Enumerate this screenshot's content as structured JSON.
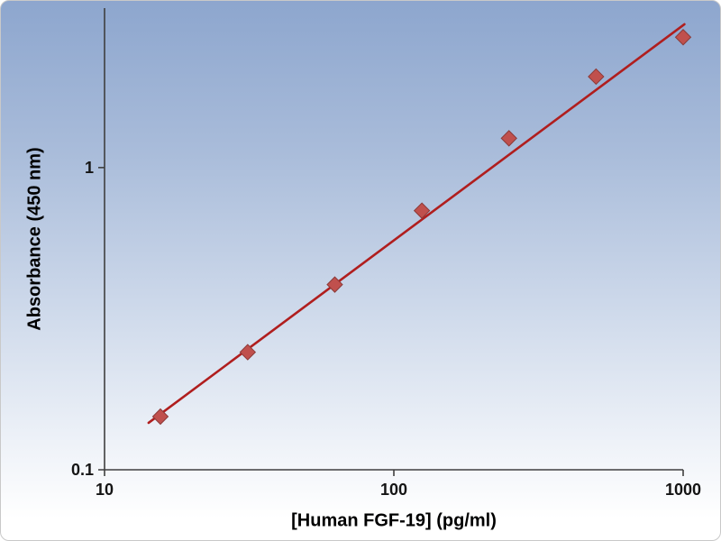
{
  "chart_data": {
    "type": "scatter",
    "title": "",
    "xlabel": "[Human FGF-19] (pg/ml)",
    "ylabel": "Absorbance (450 nm)",
    "x_scale": "log",
    "y_scale": "log",
    "xlim": [
      10,
      1000
    ],
    "ylim": [
      0.1,
      3.37
    ],
    "grid": false,
    "legend": false,
    "x": [
      15.6,
      31.25,
      62.5,
      125,
      250,
      500,
      1000
    ],
    "y": [
      0.15,
      0.245,
      0.41,
      0.72,
      1.25,
      2.0,
      2.7
    ],
    "x_ticks": [
      {
        "value": 10,
        "label": "10"
      },
      {
        "value": 100,
        "label": "100"
      },
      {
        "value": 1000,
        "label": "1000"
      }
    ],
    "y_ticks": [
      {
        "value": 0.1,
        "label": "0.1"
      },
      {
        "value": 1,
        "label": "1"
      }
    ],
    "trendline": {
      "x1": 14.2,
      "y1": 0.143,
      "x2": 1010,
      "y2": 2.98
    },
    "marker": {
      "shape": "diamond",
      "color": "#C0504D",
      "edge": "#8C3A38"
    },
    "line_color": "#B01E1E",
    "background_gradient": [
      "#8DA6CE",
      "#FFFFFF"
    ]
  }
}
